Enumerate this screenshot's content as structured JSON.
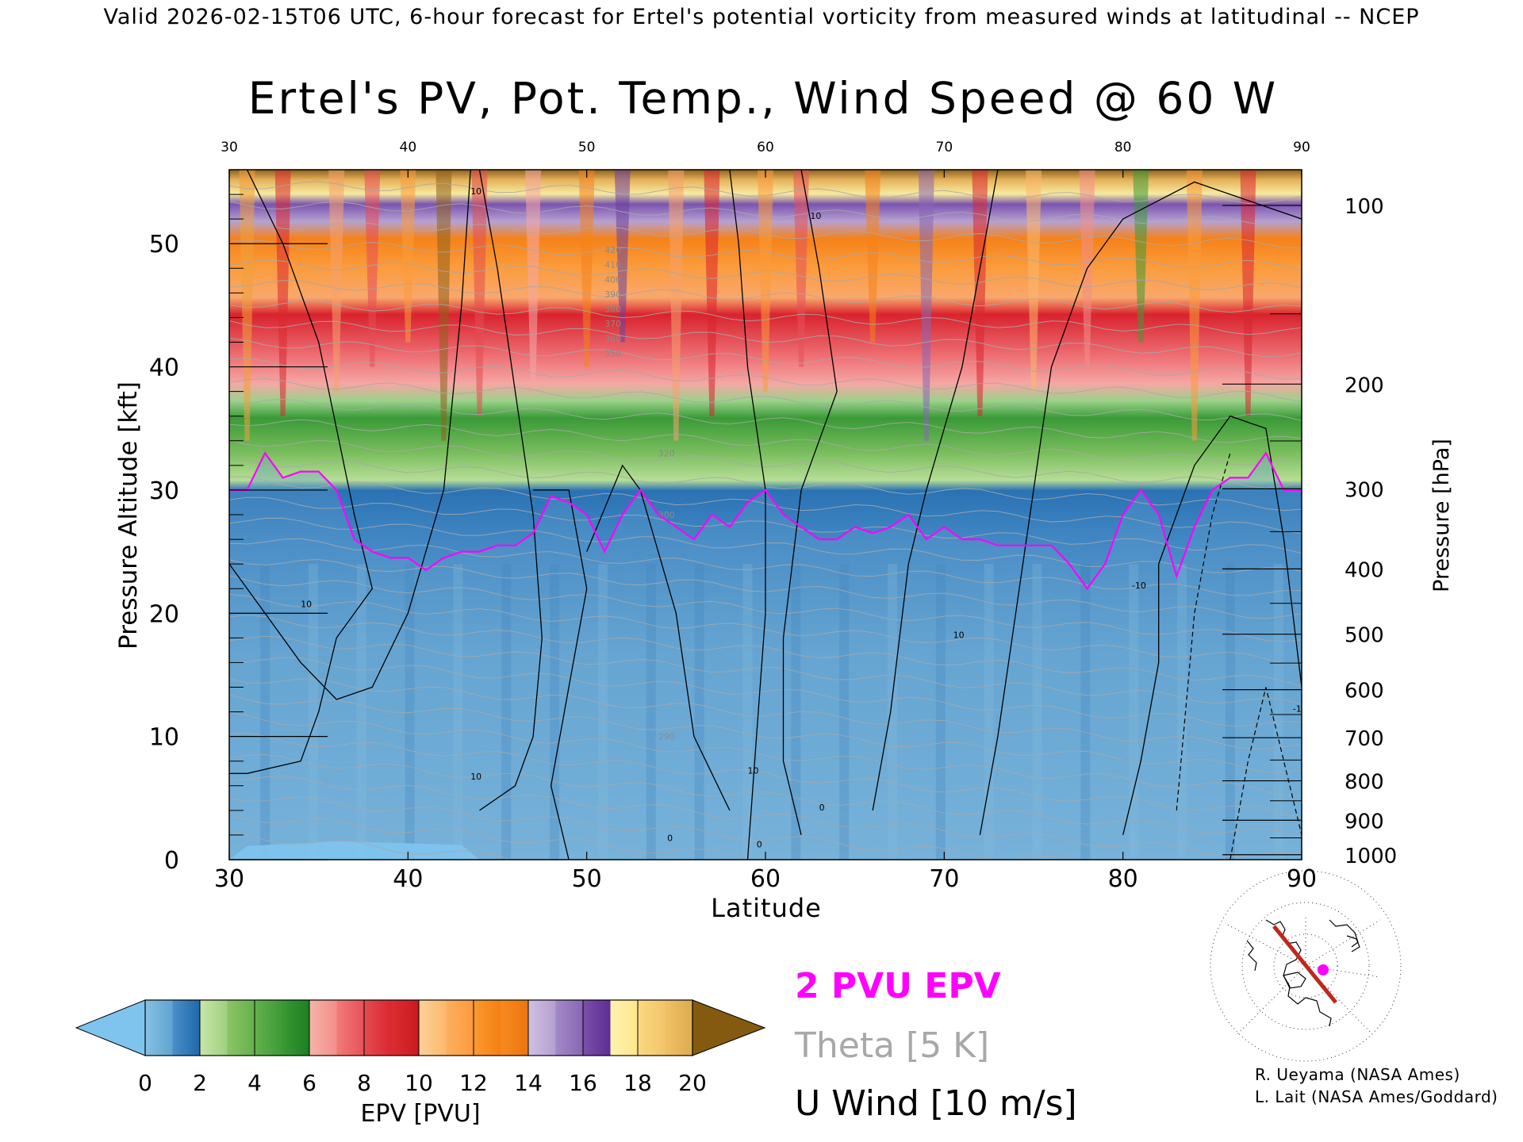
{
  "header": {
    "top_line": "Valid 2026-02-15T06 UTC, 6-hour forecast for Ertel's potential vorticity from measured winds at latitudinal -- NCEP"
  },
  "chart_data": {
    "type": "heatmap",
    "title": "Ertel's PV, Pot. Temp., Wind Speed @ 60 W",
    "xlabel": "Latitude",
    "ylabel": "Pressure Altitude [kft]",
    "ylabel_right": "Pressure [hPa]",
    "xlim": [
      30,
      90
    ],
    "ylim": [
      0,
      56
    ],
    "x_ticks": [
      30,
      40,
      50,
      60,
      70,
      80,
      90
    ],
    "y_ticks": [
      0,
      10,
      20,
      30,
      40,
      50
    ],
    "pressure_ticks": [
      {
        "hPa": 100,
        "kft": 53.1
      },
      {
        "hPa": 200,
        "kft": 38.6
      },
      {
        "hPa": 300,
        "kft": 30.1
      },
      {
        "hPa": 400,
        "kft": 23.6
      },
      {
        "hPa": 500,
        "kft": 18.3
      },
      {
        "hPa": 600,
        "kft": 13.8
      },
      {
        "hPa": 700,
        "kft": 9.9
      },
      {
        "hPa": 800,
        "kft": 6.4
      },
      {
        "hPa": 900,
        "kft": 3.2
      },
      {
        "hPa": 1000,
        "kft": 0.4
      }
    ],
    "tropopause_2pvu_kft": [
      [
        30,
        30
      ],
      [
        31,
        30
      ],
      [
        32,
        33
      ],
      [
        33,
        31
      ],
      [
        34,
        31.5
      ],
      [
        35,
        31.5
      ],
      [
        36,
        30
      ],
      [
        37,
        26
      ],
      [
        38,
        25
      ],
      [
        39,
        24.5
      ],
      [
        40,
        24.5
      ],
      [
        41,
        23.5
      ],
      [
        42,
        24.5
      ],
      [
        43,
        25
      ],
      [
        44,
        25
      ],
      [
        45,
        25.5
      ],
      [
        46,
        25.5
      ],
      [
        47,
        26.5
      ],
      [
        48,
        29.5
      ],
      [
        49,
        29
      ],
      [
        50,
        28
      ],
      [
        51,
        25
      ],
      [
        52,
        28
      ],
      [
        53,
        30
      ],
      [
        54,
        28
      ],
      [
        55,
        27
      ],
      [
        56,
        26
      ],
      [
        57,
        28
      ],
      [
        58,
        27
      ],
      [
        59,
        29
      ],
      [
        60,
        30
      ],
      [
        61,
        28
      ],
      [
        62,
        27
      ],
      [
        63,
        26
      ],
      [
        64,
        26
      ],
      [
        65,
        27
      ],
      [
        66,
        26.5
      ],
      [
        67,
        27
      ],
      [
        68,
        28
      ],
      [
        69,
        26
      ],
      [
        70,
        27
      ],
      [
        71,
        26
      ],
      [
        72,
        26
      ],
      [
        73,
        25.5
      ],
      [
        74,
        25.5
      ],
      [
        75,
        25.5
      ],
      [
        76,
        25.5
      ],
      [
        77,
        24
      ],
      [
        78,
        22
      ],
      [
        79,
        24
      ],
      [
        80,
        28
      ],
      [
        81,
        30
      ],
      [
        82,
        28
      ],
      [
        83,
        23
      ],
      [
        84,
        27
      ],
      [
        85,
        30
      ],
      [
        86,
        31
      ],
      [
        87,
        31
      ],
      [
        88,
        33
      ],
      [
        89,
        30
      ],
      [
        90,
        30
      ]
    ],
    "wind_10ms_contour_labels": [
      "10",
      "10",
      "10",
      "10",
      "10",
      "10",
      "10",
      "0",
      "0",
      "0",
      "-10",
      "-10"
    ],
    "theta_labels": [
      "420",
      "410",
      "400",
      "390",
      "380",
      "370",
      "360",
      "350",
      "320",
      "300",
      "290"
    ],
    "colorbar": {
      "label": "EPV [PVU]",
      "ticks": [
        0,
        2,
        4,
        6,
        8,
        10,
        12,
        14,
        16,
        18,
        20
      ],
      "below_color": "#7fc4ef",
      "above_color": "#845a10",
      "segments": [
        {
          "from": 0,
          "to": 1,
          "colors": [
            "#87c1e2",
            "#5fa3d0"
          ]
        },
        {
          "from": 1,
          "to": 2,
          "colors": [
            "#4a8fc9",
            "#1f67aa"
          ]
        },
        {
          "from": 2,
          "to": 3,
          "colors": [
            "#c8e6a8",
            "#9fd07e"
          ]
        },
        {
          "from": 3,
          "to": 4,
          "colors": [
            "#8cc466",
            "#66b04a"
          ]
        },
        {
          "from": 4,
          "to": 5,
          "colors": [
            "#63b14d",
            "#3d9a35"
          ]
        },
        {
          "from": 5,
          "to": 6,
          "colors": [
            "#3a9a34",
            "#1c7d24"
          ]
        },
        {
          "from": 6,
          "to": 7,
          "colors": [
            "#f6b4a8",
            "#f28e89"
          ]
        },
        {
          "from": 7,
          "to": 8,
          "colors": [
            "#f17b78",
            "#e6505a"
          ]
        },
        {
          "from": 8,
          "to": 9,
          "colors": [
            "#e44c50",
            "#d9262f"
          ]
        },
        {
          "from": 9,
          "to": 10,
          "colors": [
            "#dc2e30",
            "#c81820"
          ]
        },
        {
          "from": 10,
          "to": 11,
          "colors": [
            "#fdd19a",
            "#fcb86c"
          ]
        },
        {
          "from": 11,
          "to": 12,
          "colors": [
            "#fcb060",
            "#fb9a3c"
          ]
        },
        {
          "from": 12,
          "to": 13,
          "colors": [
            "#fb9a30",
            "#f57f12"
          ]
        },
        {
          "from": 13,
          "to": 14,
          "colors": [
            "#f78a20",
            "#ec7410"
          ]
        },
        {
          "from": 14,
          "to": 15,
          "colors": [
            "#cfc1e2",
            "#b49fd0"
          ]
        },
        {
          "from": 15,
          "to": 16,
          "colors": [
            "#a28ac6",
            "#8866b4"
          ]
        },
        {
          "from": 16,
          "to": 17,
          "colors": [
            "#7a50aa",
            "#5e2d92"
          ]
        },
        {
          "from": 17,
          "to": 18,
          "colors": [
            "#fff3b0",
            "#fde68a"
          ]
        },
        {
          "from": 18,
          "to": 19,
          "colors": [
            "#fbd983",
            "#f3c469"
          ]
        },
        {
          "from": 19,
          "to": 20,
          "colors": [
            "#f2c166",
            "#ddaa4e"
          ]
        }
      ]
    }
  },
  "legend": {
    "line1": "2 PVU EPV",
    "line1_color": "#ff00ff",
    "line2": "Theta [5 K]",
    "line2_color": "#a8a8a8",
    "line3": "U Wind [10 m/s]",
    "line3_color": "#000000"
  },
  "credits": {
    "line1": "R. Ueyama (NASA Ames)",
    "line2": "L. Lait (NASA Ames/Goddard)"
  },
  "map_inset": {
    "icon": "polar-stereographic-map-icon",
    "section_line_color": "#c0281c",
    "marker_color": "#ff00ff"
  }
}
